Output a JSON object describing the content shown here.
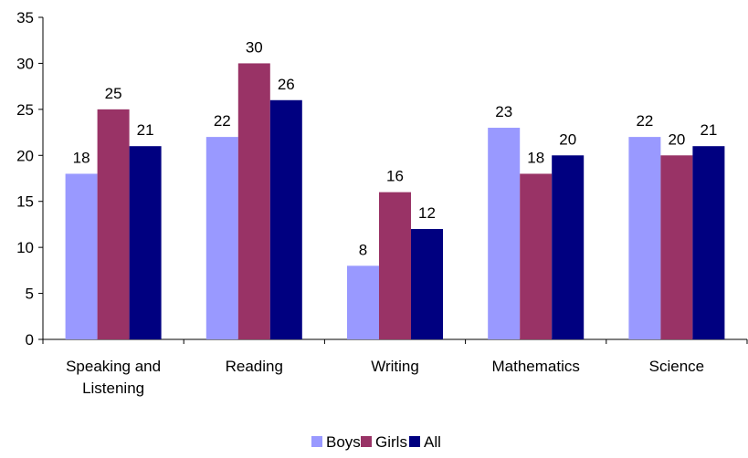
{
  "chart_data": {
    "type": "bar",
    "categories": [
      "Speaking and Listening",
      "Reading",
      "Writing",
      "Mathematics",
      "Science"
    ],
    "category_lines": [
      [
        "Speaking and",
        "Listening"
      ],
      [
        "Reading"
      ],
      [
        "Writing"
      ],
      [
        "Mathematics"
      ],
      [
        "Science"
      ]
    ],
    "series": [
      {
        "name": "Boys",
        "color": "#9999ff",
        "values": [
          18,
          22,
          8,
          23,
          22
        ]
      },
      {
        "name": "Girls",
        "color": "#993366",
        "values": [
          25,
          30,
          16,
          18,
          20
        ]
      },
      {
        "name": "All",
        "color": "#000080",
        "values": [
          21,
          26,
          12,
          20,
          21
        ]
      }
    ],
    "ylim": [
      0,
      35
    ],
    "yticks": [
      0,
      5,
      10,
      15,
      20,
      25,
      30,
      35
    ],
    "title": "",
    "xlabel": "",
    "ylabel": "",
    "grid": false,
    "legend_position": "bottom"
  }
}
